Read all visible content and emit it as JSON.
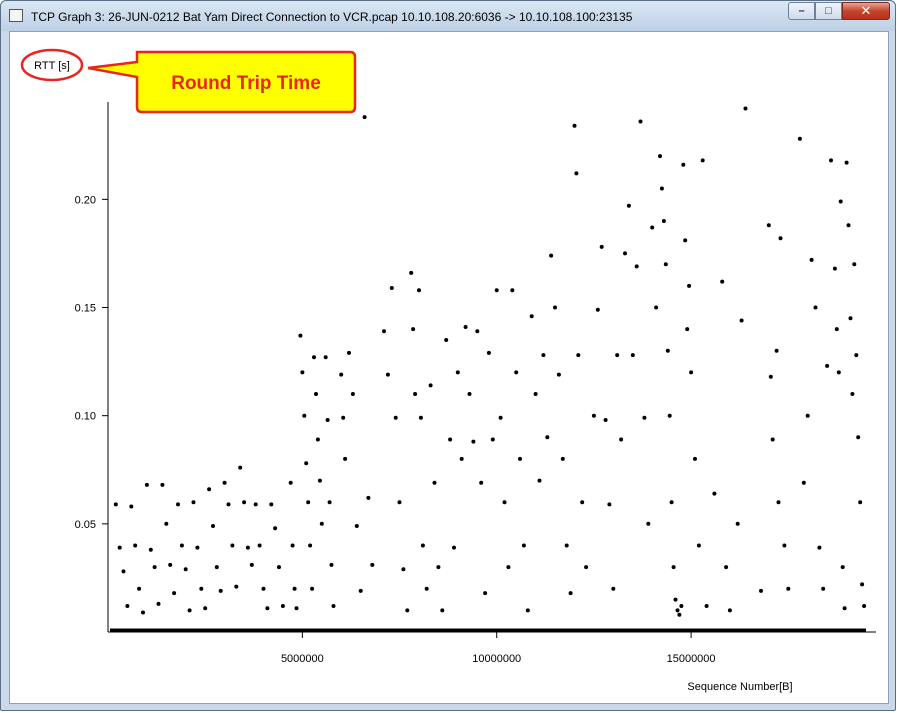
{
  "window": {
    "title": "TCP Graph 3: 26-JUN-0212 Bat Yam Direct Connection to VCR.pcap 10.10.108.20:6036 -> 10.10.108.100:23135",
    "controls": {
      "minimize": "–",
      "maximize": "□",
      "close": "✕"
    }
  },
  "annotation": {
    "text": "Round Trip Time",
    "fill": "#ffff00",
    "stroke": "#e8261e"
  },
  "chart_data": {
    "type": "scatter",
    "ylabel": "RTT [s]",
    "xlabel": "Sequence Number[B]",
    "xlim": [
      0,
      19500000
    ],
    "ylim": [
      0,
      0.245
    ],
    "x_ticks": [
      5000000,
      10000000,
      15000000
    ],
    "x_tick_labels": [
      "5000000",
      "10000000",
      "15000000"
    ],
    "y_ticks": [
      0.05,
      0.1,
      0.15,
      0.2
    ],
    "y_tick_labels": [
      "0.05",
      "0.10",
      "0.15",
      "0.20"
    ],
    "grid": false,
    "marker_color": "#000000",
    "series": [
      {
        "points": [
          [
            200000,
            0.059
          ],
          [
            300000,
            0.039
          ],
          [
            400000,
            0.028
          ],
          [
            500000,
            0.012
          ],
          [
            600000,
            0.058
          ],
          [
            700000,
            0.04
          ],
          [
            800000,
            0.02
          ],
          [
            900000,
            0.009
          ],
          [
            1000000,
            0.068
          ],
          [
            1100000,
            0.038
          ],
          [
            1200000,
            0.03
          ],
          [
            1300000,
            0.013
          ],
          [
            1400000,
            0.068
          ],
          [
            1500000,
            0.05
          ],
          [
            1600000,
            0.031
          ],
          [
            1700000,
            0.018
          ],
          [
            1800000,
            0.059
          ],
          [
            1900000,
            0.04
          ],
          [
            2000000,
            0.029
          ],
          [
            2100000,
            0.01
          ],
          [
            2200000,
            0.06
          ],
          [
            2300000,
            0.039
          ],
          [
            2400000,
            0.02
          ],
          [
            2500000,
            0.011
          ],
          [
            2600000,
            0.066
          ],
          [
            2700000,
            0.049
          ],
          [
            2800000,
            0.03
          ],
          [
            2900000,
            0.019
          ],
          [
            3000000,
            0.069
          ],
          [
            3100000,
            0.059
          ],
          [
            3200000,
            0.04
          ],
          [
            3300000,
            0.021
          ],
          [
            3400000,
            0.076
          ],
          [
            3500000,
            0.06
          ],
          [
            3600000,
            0.039
          ],
          [
            3700000,
            0.031
          ],
          [
            3800000,
            0.059
          ],
          [
            3900000,
            0.04
          ],
          [
            4000000,
            0.02
          ],
          [
            4100000,
            0.011
          ],
          [
            4200000,
            0.059
          ],
          [
            4300000,
            0.048
          ],
          [
            4400000,
            0.03
          ],
          [
            4500000,
            0.012
          ],
          [
            4700000,
            0.069
          ],
          [
            4750000,
            0.04
          ],
          [
            4800000,
            0.02
          ],
          [
            4850000,
            0.011
          ],
          [
            4950000,
            0.137
          ],
          [
            5000000,
            0.12
          ],
          [
            5050000,
            0.1
          ],
          [
            5100000,
            0.078
          ],
          [
            5150000,
            0.06
          ],
          [
            5200000,
            0.04
          ],
          [
            5250000,
            0.02
          ],
          [
            5300000,
            0.127
          ],
          [
            5350000,
            0.11
          ],
          [
            5400000,
            0.089
          ],
          [
            5450000,
            0.07
          ],
          [
            5500000,
            0.05
          ],
          [
            5600000,
            0.127
          ],
          [
            5650000,
            0.098
          ],
          [
            5700000,
            0.06
          ],
          [
            5750000,
            0.031
          ],
          [
            5800000,
            0.012
          ],
          [
            6000000,
            0.119
          ],
          [
            6050000,
            0.099
          ],
          [
            6100000,
            0.08
          ],
          [
            6200000,
            0.129
          ],
          [
            6300000,
            0.11
          ],
          [
            6400000,
            0.049
          ],
          [
            6500000,
            0.019
          ],
          [
            6600000,
            0.238
          ],
          [
            6700000,
            0.062
          ],
          [
            6800000,
            0.031
          ],
          [
            7100000,
            0.139
          ],
          [
            7200000,
            0.119
          ],
          [
            7300000,
            0.159
          ],
          [
            7400000,
            0.099
          ],
          [
            7500000,
            0.06
          ],
          [
            7600000,
            0.029
          ],
          [
            7700000,
            0.01
          ],
          [
            7800000,
            0.166
          ],
          [
            7850000,
            0.14
          ],
          [
            7900000,
            0.11
          ],
          [
            8000000,
            0.158
          ],
          [
            8050000,
            0.099
          ],
          [
            8100000,
            0.04
          ],
          [
            8200000,
            0.02
          ],
          [
            8300000,
            0.114
          ],
          [
            8400000,
            0.069
          ],
          [
            8500000,
            0.03
          ],
          [
            8600000,
            0.01
          ],
          [
            8700000,
            0.135
          ],
          [
            8800000,
            0.089
          ],
          [
            8900000,
            0.039
          ],
          [
            9000000,
            0.12
          ],
          [
            9100000,
            0.08
          ],
          [
            9200000,
            0.141
          ],
          [
            9300000,
            0.11
          ],
          [
            9400000,
            0.088
          ],
          [
            9500000,
            0.139
          ],
          [
            9600000,
            0.069
          ],
          [
            9700000,
            0.018
          ],
          [
            9800000,
            0.129
          ],
          [
            9900000,
            0.089
          ],
          [
            10000000,
            0.158
          ],
          [
            10100000,
            0.099
          ],
          [
            10200000,
            0.06
          ],
          [
            10300000,
            0.03
          ],
          [
            10400000,
            0.158
          ],
          [
            10500000,
            0.12
          ],
          [
            10600000,
            0.08
          ],
          [
            10700000,
            0.04
          ],
          [
            10800000,
            0.01
          ],
          [
            10900000,
            0.146
          ],
          [
            11000000,
            0.11
          ],
          [
            11100000,
            0.07
          ],
          [
            11200000,
            0.128
          ],
          [
            11300000,
            0.09
          ],
          [
            11400000,
            0.174
          ],
          [
            11500000,
            0.15
          ],
          [
            11600000,
            0.119
          ],
          [
            11700000,
            0.08
          ],
          [
            11800000,
            0.04
          ],
          [
            11900000,
            0.018
          ],
          [
            12000000,
            0.234
          ],
          [
            12050000,
            0.212
          ],
          [
            12100000,
            0.128
          ],
          [
            12200000,
            0.06
          ],
          [
            12300000,
            0.03
          ],
          [
            12500000,
            0.1
          ],
          [
            12600000,
            0.149
          ],
          [
            12700000,
            0.178
          ],
          [
            12800000,
            0.098
          ],
          [
            12900000,
            0.059
          ],
          [
            13000000,
            0.02
          ],
          [
            13100000,
            0.128
          ],
          [
            13200000,
            0.089
          ],
          [
            13300000,
            0.175
          ],
          [
            13400000,
            0.197
          ],
          [
            13500000,
            0.128
          ],
          [
            13600000,
            0.169
          ],
          [
            13700000,
            0.236
          ],
          [
            13800000,
            0.099
          ],
          [
            13900000,
            0.05
          ],
          [
            14000000,
            0.187
          ],
          [
            14100000,
            0.15
          ],
          [
            14200000,
            0.22
          ],
          [
            14250000,
            0.205
          ],
          [
            14300000,
            0.19
          ],
          [
            14350000,
            0.17
          ],
          [
            14400000,
            0.13
          ],
          [
            14450000,
            0.1
          ],
          [
            14500000,
            0.06
          ],
          [
            14550000,
            0.03
          ],
          [
            14600000,
            0.015
          ],
          [
            14650000,
            0.01
          ],
          [
            14700000,
            0.008
          ],
          [
            14750000,
            0.012
          ],
          [
            14800000,
            0.216
          ],
          [
            14850000,
            0.181
          ],
          [
            14900000,
            0.14
          ],
          [
            14950000,
            0.16
          ],
          [
            15000000,
            0.12
          ],
          [
            15100000,
            0.08
          ],
          [
            15200000,
            0.04
          ],
          [
            15300000,
            0.218
          ],
          [
            15400000,
            0.012
          ],
          [
            15600000,
            0.064
          ],
          [
            15800000,
            0.162
          ],
          [
            15900000,
            0.03
          ],
          [
            16000000,
            0.01
          ],
          [
            16200000,
            0.05
          ],
          [
            16300000,
            0.144
          ],
          [
            16400000,
            0.242
          ],
          [
            16800000,
            0.019
          ],
          [
            17000000,
            0.188
          ],
          [
            17050000,
            0.118
          ],
          [
            17100000,
            0.089
          ],
          [
            17200000,
            0.13
          ],
          [
            17250000,
            0.06
          ],
          [
            17300000,
            0.182
          ],
          [
            17400000,
            0.04
          ],
          [
            17500000,
            0.02
          ],
          [
            17800000,
            0.228
          ],
          [
            17900000,
            0.069
          ],
          [
            18000000,
            0.1
          ],
          [
            18100000,
            0.172
          ],
          [
            18200000,
            0.15
          ],
          [
            18300000,
            0.039
          ],
          [
            18400000,
            0.02
          ],
          [
            18500000,
            0.123
          ],
          [
            18600000,
            0.218
          ],
          [
            18700000,
            0.168
          ],
          [
            18750000,
            0.14
          ],
          [
            18800000,
            0.12
          ],
          [
            18850000,
            0.199
          ],
          [
            18900000,
            0.03
          ],
          [
            18950000,
            0.011
          ],
          [
            19000000,
            0.217
          ],
          [
            19050000,
            0.188
          ],
          [
            19100000,
            0.145
          ],
          [
            19150000,
            0.11
          ],
          [
            19200000,
            0.17
          ],
          [
            19250000,
            0.128
          ],
          [
            19300000,
            0.09
          ],
          [
            19350000,
            0.06
          ],
          [
            19400000,
            0.022
          ],
          [
            19450000,
            0.012
          ]
        ]
      }
    ]
  }
}
